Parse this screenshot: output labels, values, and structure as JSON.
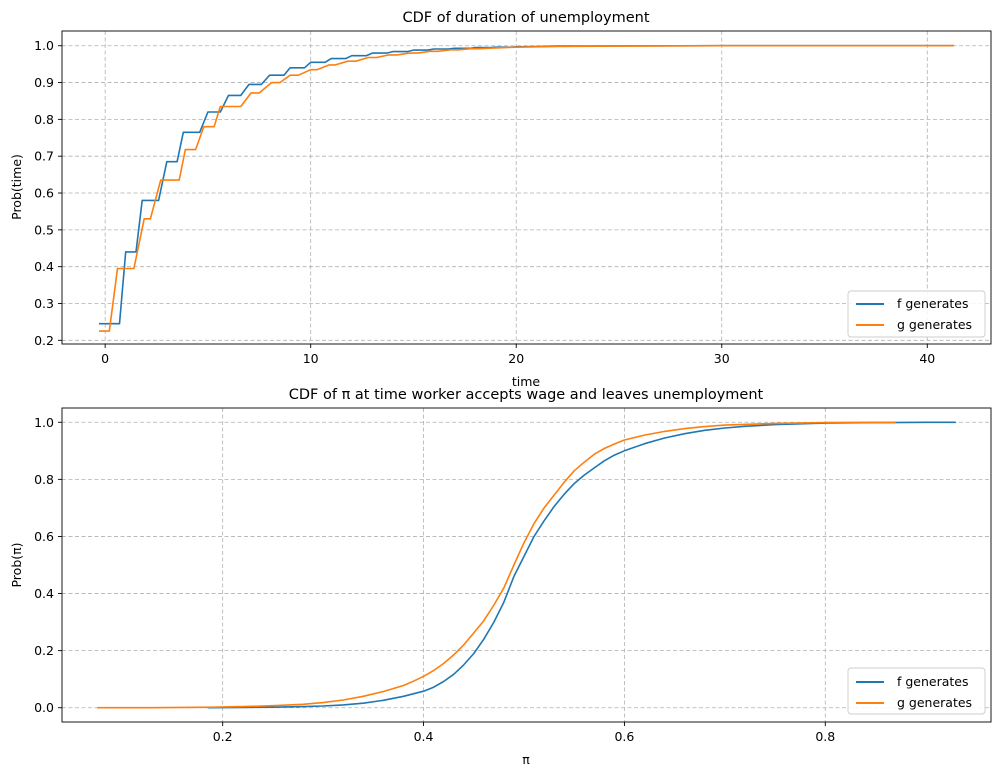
{
  "colors": {
    "f": "#1f77b4",
    "g": "#ff7f0e"
  },
  "chart_data": [
    {
      "type": "line",
      "title": "CDF of duration of unemployment",
      "xlabel": "time",
      "ylabel": "Prob(time)",
      "xlim": [
        -2.1,
        43.1
      ],
      "ylim": [
        0.19,
        1.04
      ],
      "xticks": [
        0,
        10,
        20,
        30,
        40
      ],
      "yticks": [
        0.2,
        0.3,
        0.4,
        0.5,
        0.6,
        0.7,
        0.8,
        0.9,
        1.0
      ],
      "ytick_labels": [
        "0.2",
        "0.3",
        "0.4",
        "0.5",
        "0.6",
        "0.7",
        "0.8",
        "0.9",
        "1.0"
      ],
      "xtick_labels": [
        "0",
        "10",
        "20",
        "30",
        "40"
      ],
      "grid": true,
      "legend_position": "lower-right",
      "series": [
        {
          "name": "f generates",
          "color_key": "f",
          "x": [
            -0.3,
            0.7,
            1.0,
            1.5,
            1.8,
            2.6,
            3.0,
            3.5,
            3.8,
            4.6,
            5.0,
            5.6,
            6.0,
            6.6,
            7.0,
            7.6,
            8.0,
            8.7,
            9.0,
            9.7,
            10.0,
            10.7,
            11.0,
            11.7,
            12.0,
            12.7,
            13.0,
            13.7,
            14.0,
            14.7,
            15.0,
            15.7,
            16.0,
            16.7,
            17.0,
            17.8,
            18.0,
            18.8,
            19.0,
            19.8,
            20.0,
            21.0,
            22.0,
            25.0,
            30.0,
            35.0,
            41.3
          ],
          "y": [
            0.245,
            0.245,
            0.44,
            0.44,
            0.58,
            0.58,
            0.685,
            0.685,
            0.765,
            0.765,
            0.82,
            0.82,
            0.865,
            0.865,
            0.895,
            0.895,
            0.92,
            0.92,
            0.94,
            0.94,
            0.955,
            0.955,
            0.965,
            0.965,
            0.973,
            0.973,
            0.98,
            0.98,
            0.984,
            0.984,
            0.988,
            0.988,
            0.991,
            0.991,
            0.993,
            0.993,
            0.995,
            0.995,
            0.996,
            0.996,
            0.997,
            0.998,
            0.999,
            0.9995,
            1.0,
            1.0,
            1.0
          ]
        },
        {
          "name": "g generates",
          "color_key": "g",
          "x": [
            -0.3,
            0.2,
            0.6,
            1.1,
            1.4,
            1.9,
            2.2,
            2.7,
            3.0,
            3.6,
            3.9,
            4.4,
            4.8,
            5.3,
            5.6,
            6.2,
            6.6,
            7.1,
            7.5,
            8.1,
            8.5,
            9.0,
            9.4,
            10.0,
            10.3,
            10.9,
            11.2,
            11.8,
            12.2,
            12.8,
            13.2,
            13.8,
            14.2,
            14.8,
            15.2,
            15.8,
            16.2,
            16.8,
            17.2,
            17.8,
            18.2,
            19.0,
            20.0,
            22.0,
            25.0,
            30.0,
            35.0,
            41.3
          ],
          "y": [
            0.225,
            0.225,
            0.395,
            0.395,
            0.395,
            0.53,
            0.53,
            0.635,
            0.635,
            0.635,
            0.718,
            0.718,
            0.78,
            0.78,
            0.835,
            0.835,
            0.835,
            0.872,
            0.872,
            0.9,
            0.9,
            0.92,
            0.92,
            0.935,
            0.935,
            0.948,
            0.948,
            0.958,
            0.958,
            0.968,
            0.968,
            0.975,
            0.975,
            0.98,
            0.98,
            0.985,
            0.985,
            0.989,
            0.989,
            0.992,
            0.992,
            0.994,
            0.996,
            0.998,
            0.999,
            1.0,
            1.0,
            1.0
          ]
        }
      ]
    },
    {
      "type": "line",
      "title": "CDF of π at time worker accepts wage and leaves unemployment",
      "xlabel": "π",
      "ylabel": "Prob(π)",
      "xlim": [
        0.04,
        0.965
      ],
      "ylim": [
        -0.05,
        1.05
      ],
      "xticks": [
        0.2,
        0.4,
        0.6,
        0.8
      ],
      "xtick_labels": [
        "0.2",
        "0.4",
        "0.6",
        "0.8"
      ],
      "yticks": [
        0.0,
        0.2,
        0.4,
        0.6,
        0.8,
        1.0
      ],
      "ytick_labels": [
        "0.0",
        "0.2",
        "0.4",
        "0.6",
        "0.8",
        "1.0"
      ],
      "grid": true,
      "legend_position": "lower-right",
      "series": [
        {
          "name": "f generates",
          "color_key": "f",
          "x": [
            0.185,
            0.22,
            0.25,
            0.28,
            0.3,
            0.32,
            0.34,
            0.36,
            0.38,
            0.4,
            0.41,
            0.42,
            0.43,
            0.44,
            0.45,
            0.46,
            0.47,
            0.48,
            0.49,
            0.5,
            0.51,
            0.52,
            0.53,
            0.54,
            0.55,
            0.56,
            0.57,
            0.58,
            0.59,
            0.6,
            0.62,
            0.64,
            0.66,
            0.68,
            0.7,
            0.72,
            0.75,
            0.8,
            0.85,
            0.9,
            0.93
          ],
          "y": [
            0.0,
            0.001,
            0.002,
            0.004,
            0.006,
            0.01,
            0.016,
            0.026,
            0.04,
            0.058,
            0.072,
            0.092,
            0.117,
            0.15,
            0.19,
            0.24,
            0.3,
            0.37,
            0.46,
            0.53,
            0.6,
            0.655,
            0.705,
            0.748,
            0.785,
            0.815,
            0.84,
            0.865,
            0.885,
            0.9,
            0.925,
            0.945,
            0.96,
            0.972,
            0.98,
            0.986,
            0.992,
            0.997,
            0.999,
            1.0,
            1.0
          ]
        },
        {
          "name": "g generates",
          "color_key": "g",
          "x": [
            0.075,
            0.1,
            0.13,
            0.16,
            0.19,
            0.22,
            0.25,
            0.28,
            0.3,
            0.32,
            0.34,
            0.36,
            0.38,
            0.39,
            0.4,
            0.41,
            0.42,
            0.43,
            0.44,
            0.45,
            0.46,
            0.47,
            0.48,
            0.49,
            0.5,
            0.51,
            0.52,
            0.53,
            0.54,
            0.55,
            0.56,
            0.57,
            0.58,
            0.59,
            0.6,
            0.62,
            0.64,
            0.66,
            0.68,
            0.7,
            0.75,
            0.8,
            0.87
          ],
          "y": [
            0.0,
            0.0,
            0.0,
            0.001,
            0.002,
            0.004,
            0.007,
            0.012,
            0.018,
            0.027,
            0.04,
            0.057,
            0.078,
            0.093,
            0.11,
            0.13,
            0.155,
            0.185,
            0.22,
            0.262,
            0.305,
            0.36,
            0.42,
            0.5,
            0.578,
            0.645,
            0.7,
            0.745,
            0.79,
            0.83,
            0.86,
            0.888,
            0.908,
            0.924,
            0.938,
            0.955,
            0.968,
            0.978,
            0.985,
            0.99,
            0.996,
            0.999,
            1.0
          ]
        }
      ]
    }
  ]
}
